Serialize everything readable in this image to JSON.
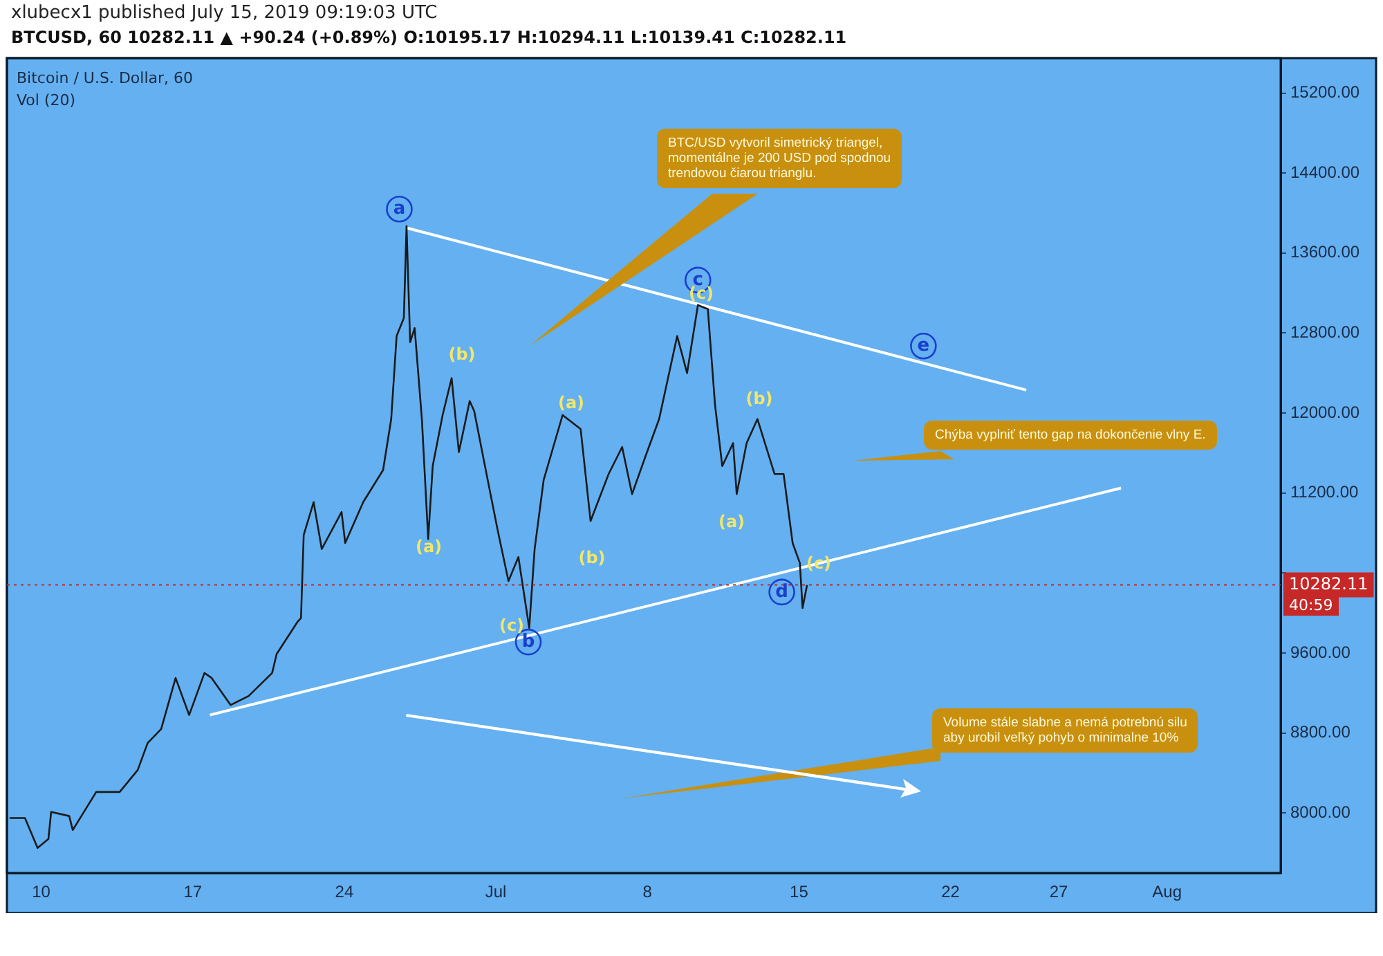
{
  "chart_data": {
    "type": "line",
    "title": "xlubecx1 published July 15, 2019 09:19:03 UTC",
    "subtitle": "BTCUSD, 60 10282.11 ▲ +90.24 (+0.89%) O:10195.17 H:10294.11 L:10139.41 C:10282.11",
    "xlim": [
      "2019-06-08T10:00",
      "2019-08-06T06:00"
    ],
    "xticks": [
      {
        "value": "2019-06-10T00:00",
        "label": "10"
      },
      {
        "value": "2019-06-17T00:00",
        "label": "17"
      },
      {
        "value": "2019-06-24T00:00",
        "label": "24"
      },
      {
        "value": "2019-07-01T00:00",
        "label": "Jul"
      },
      {
        "value": "2019-07-08T00:00",
        "label": "8"
      },
      {
        "value": "2019-07-15T00:00",
        "label": "15"
      },
      {
        "value": "2019-07-22T00:00",
        "label": "22"
      },
      {
        "value": "2019-07-27T00:00",
        "label": "27"
      },
      {
        "value": "2019-08-01T00:00",
        "label": "Aug"
      }
    ],
    "ylim": [
      7400,
      15550
    ],
    "yticks": [
      {
        "value": 8000,
        "label": "8000.00"
      },
      {
        "value": 8800,
        "label": "8800.00"
      },
      {
        "value": 9600,
        "label": "9600.00"
      },
      {
        "value": 10400,
        "label": null
      },
      {
        "value": 11200,
        "label": "11200.00"
      },
      {
        "value": 12000,
        "label": "12000.00"
      },
      {
        "value": 12800,
        "label": "12800.00"
      },
      {
        "value": 13600,
        "label": "13600.00"
      },
      {
        "value": 14400,
        "label": "14400.00"
      },
      {
        "value": 15200,
        "label": "15200.00"
      }
    ],
    "grid": false,
    "legend": false,
    "marker": "none",
    "line_style": "solid",
    "series": [
      {
        "color": "#1a1a1a",
        "x": [
          "2019-06-08T13:00",
          "2019-06-09T06:00",
          "2019-06-09T20:00",
          "2019-06-10T08:00",
          "2019-06-10T11:00",
          "2019-06-11T07:00",
          "2019-06-11T11:00",
          "2019-06-12T13:00",
          "2019-06-13T15:00",
          "2019-06-14T11:00",
          "2019-06-14T22:00",
          "2019-06-15T13:00",
          "2019-06-16T05:00",
          "2019-06-16T20:00",
          "2019-06-17T13:00",
          "2019-06-17T21:00",
          "2019-06-18T18:00",
          "2019-06-19T14:00",
          "2019-06-20T16:00",
          "2019-06-20T21:00",
          "2019-06-21T20:00",
          "2019-06-22T00:00",
          "2019-06-22T03:00",
          "2019-06-22T14:00",
          "2019-06-22T23:00",
          "2019-06-23T21:00",
          "2019-06-24T01:00",
          "2019-06-24T21:00",
          "2019-06-25T19:00",
          "2019-06-26T04:00",
          "2019-06-26T10:00",
          "2019-06-26T18:00",
          "2019-06-26T21:00",
          "2019-06-27T01:00",
          "2019-06-27T06:00",
          "2019-06-27T14:00",
          "2019-06-27T21:00",
          "2019-06-28T02:00",
          "2019-06-28T13:00",
          "2019-06-28T23:00",
          "2019-06-29T07:00",
          "2019-06-29T19:00",
          "2019-06-30T00:00",
          "2019-06-30T15:00",
          "2019-07-01T02:00",
          "2019-07-01T14:00",
          "2019-07-02T01:00",
          "2019-07-02T13:00",
          "2019-07-02T19:00",
          "2019-07-03T05:00",
          "2019-07-04T02:00",
          "2019-07-04T22:00",
          "2019-07-05T09:00",
          "2019-07-06T05:00",
          "2019-07-06T20:00",
          "2019-07-07T07:00",
          "2019-07-07T22:00",
          "2019-07-08T13:00",
          "2019-07-09T09:00",
          "2019-07-09T20:00",
          "2019-07-10T08:00",
          "2019-07-10T19:00",
          "2019-07-11T03:00",
          "2019-07-11T11:00",
          "2019-07-11T23:00",
          "2019-07-12T03:00",
          "2019-07-12T14:00",
          "2019-07-13T02:00",
          "2019-07-13T21:00",
          "2019-07-14T07:00",
          "2019-07-14T17:00",
          "2019-07-15T01:00",
          "2019-07-15T04:00",
          "2019-07-15T09:00"
        ],
        "values": [
          7950,
          7950,
          7650,
          7740,
          8010,
          7970,
          7830,
          8210,
          8210,
          8430,
          8700,
          8840,
          9350,
          8980,
          9400,
          9350,
          9080,
          9170,
          9400,
          9590,
          9910,
          9950,
          10780,
          11110,
          10640,
          11010,
          10700,
          11110,
          11430,
          11940,
          12770,
          12950,
          13870,
          12710,
          12850,
          11940,
          10740,
          11470,
          11980,
          12350,
          11610,
          12120,
          12020,
          11330,
          10830,
          10320,
          10560,
          9850,
          10640,
          11330,
          11980,
          11840,
          10920,
          11390,
          11660,
          11190,
          11570,
          11940,
          12770,
          12400,
          13080,
          13040,
          12080,
          11470,
          11700,
          11190,
          11700,
          11940,
          11390,
          11390,
          10700,
          10500,
          10050,
          10280
        ]
      },
      {
        "color": "#ffffff",
        "x": [
          "2019-06-26T22:00",
          "2019-07-25T12:00"
        ],
        "values": [
          13850,
          12230
        ]
      },
      {
        "color": "#ffffff",
        "x": [
          "2019-06-17T19:00",
          "2019-07-29T21:00"
        ],
        "values": [
          8980,
          11250
        ]
      }
    ],
    "ref_lines": [
      {
        "axis": "y",
        "value": 10282.11,
        "label": "10282.11",
        "color": "#c62828",
        "line_style": "dotted"
      }
    ],
    "annotations": [
      {
        "text": "a",
        "x": "2019-06-26T13:00",
        "y": 14040
      },
      {
        "text": "b",
        "x": "2019-07-02T12:00",
        "y": 9710
      },
      {
        "text": "c",
        "x": "2019-07-10T08:00",
        "y": 13330
      },
      {
        "text": "d",
        "x": "2019-07-14T05:00",
        "y": 10210
      },
      {
        "text": "e",
        "x": "2019-07-20T18:00",
        "y": 12670
      },
      "(a)",
      "(b)",
      "(c)",
      "(a)",
      "(b)",
      "(c)",
      "(a)",
      "(b)",
      "(c)",
      "Bitcoin / U.S. Dollar, 60",
      "Vol (20)",
      "BTC/USD vytvoril simetrický triangel,\nmomentálne je 200 USD pod spodnou\ntrendovou čiarou trianglu.",
      "Chýba vyplniť tento gap na dokončenie vlny E.",
      "Volume stále slabne a nemá potrebnú silu\naby urobil veľký pohyb o minimalne 10%",
      "40:59"
    ]
  }
}
